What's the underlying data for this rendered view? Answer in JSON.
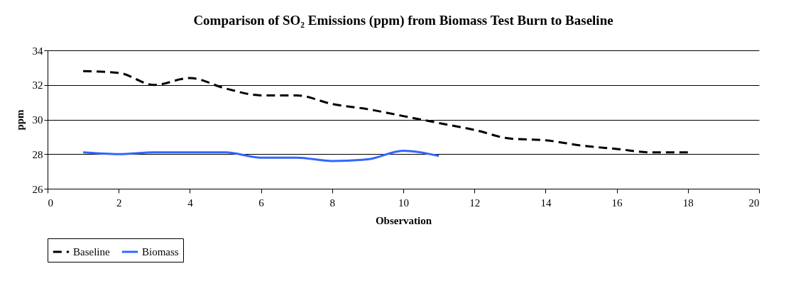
{
  "chart_data": {
    "type": "line",
    "title": "Comparison of SO₂ Emissions (ppm) from Biomass Test Burn to Baseline",
    "xlabel": "Observation",
    "ylabel": "ppm",
    "xlim": [
      0,
      20
    ],
    "xticks": [
      0,
      2,
      4,
      6,
      8,
      10,
      12,
      14,
      16,
      18,
      20
    ],
    "ylim": [
      26,
      34
    ],
    "yticks": [
      26,
      28,
      30,
      32,
      34
    ],
    "grid": "y",
    "legend": "bottom",
    "marker": "none",
    "series": [
      {
        "name": "Baseline",
        "color": "#000000",
        "line_style": "dashed",
        "x": [
          1,
          2,
          3,
          4,
          5,
          6,
          7,
          8,
          9,
          10,
          11,
          12,
          13,
          14,
          15,
          16,
          17,
          18
        ],
        "values": [
          32.8,
          32.7,
          32.0,
          32.4,
          31.8,
          31.4,
          31.4,
          30.9,
          30.6,
          30.2,
          29.8,
          29.4,
          28.9,
          28.8,
          28.5,
          28.3,
          28.1,
          28.1
        ]
      },
      {
        "name": "Biomass",
        "color": "#3366ff",
        "line_style": "solid",
        "x": [
          1,
          2,
          3,
          4,
          5,
          6,
          7,
          8,
          9,
          10,
          11
        ],
        "values": [
          28.1,
          28.0,
          28.1,
          28.1,
          28.1,
          27.8,
          27.8,
          27.6,
          27.7,
          28.2,
          27.9
        ]
      }
    ]
  }
}
